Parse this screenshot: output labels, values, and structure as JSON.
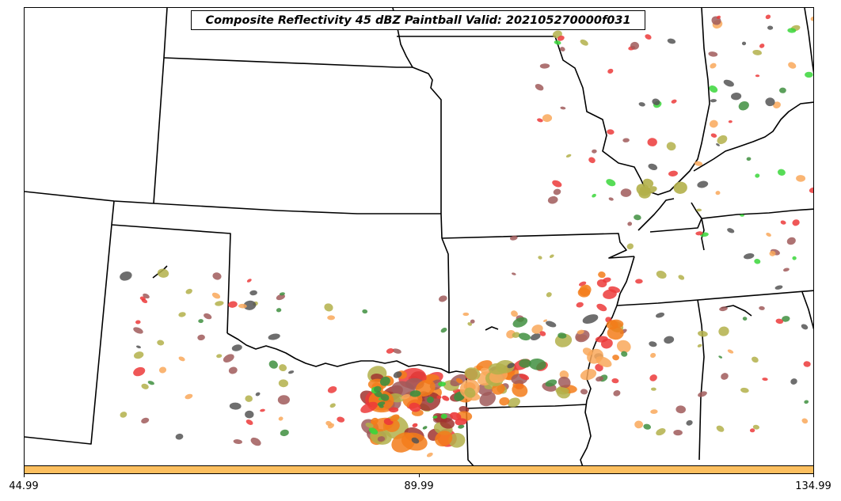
{
  "title": "Composite Reflectivity 45 dBZ Paintball Valid: 202105270000f031",
  "colorbar": {
    "color": "#fcbf5f",
    "ticks": [
      "44.99",
      "89.99",
      "134.99"
    ]
  },
  "palette": {
    "dark_red": "#a0342f",
    "brown": "#a05a5a",
    "red": "#ec3a3a",
    "orange": "#f37d1a",
    "light_orange": "#f9a85b",
    "olive": "#b3b04a",
    "green": "#3ad63a",
    "dark_green": "#3f8f3f",
    "gray": "#555555",
    "boundary": "#000000"
  }
}
